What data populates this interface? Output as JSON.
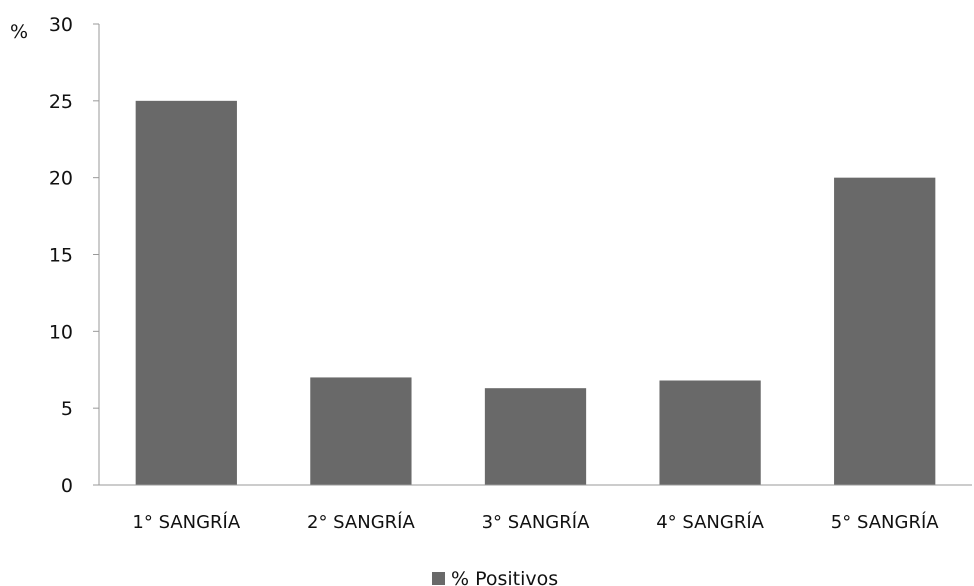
{
  "chart_data": {
    "type": "bar",
    "categories": [
      "1° SANGRÍA",
      "2° SANGRÍA",
      "3° SANGRÍA",
      "4° SANGRÍA",
      "5° SANGRÍA"
    ],
    "series": [
      {
        "name": "% Positivos",
        "values": [
          25,
          7,
          6.3,
          6.8,
          20
        ],
        "color": "#696969"
      }
    ],
    "ylabel": "%",
    "ylim": [
      0,
      30
    ],
    "yticks": [
      0,
      5,
      10,
      15,
      20,
      25,
      30
    ],
    "grid": false,
    "legend_position": "bottom"
  }
}
